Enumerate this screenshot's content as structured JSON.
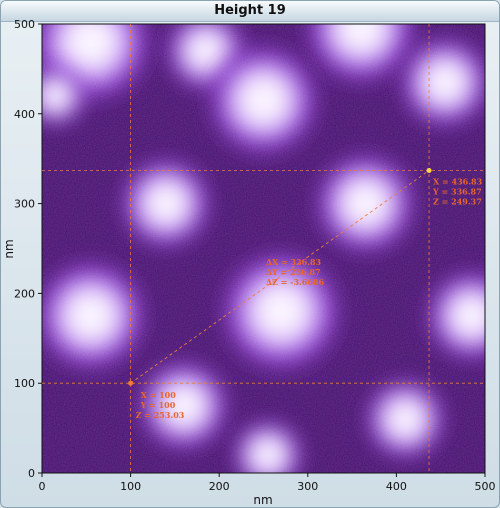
{
  "window": {
    "title": "Height 19"
  },
  "axes": {
    "xlabel": "nm",
    "ylabel": "nm",
    "xlim": [
      0,
      500
    ],
    "ylim": [
      0,
      500
    ],
    "x_ticks": [
      "0",
      "100",
      "200",
      "300",
      "400",
      "500"
    ],
    "y_ticks": [
      "0",
      "100",
      "200",
      "300",
      "400",
      "500"
    ]
  },
  "colors": {
    "marker": "#f07a3a",
    "colormap_low": "#1e002a",
    "colormap_mid": "#8a2bd8",
    "colormap_high": "#ffffff"
  },
  "cursor1": {
    "x": 100,
    "y": 100,
    "label_x": "X = 100",
    "label_y": "Y = 100",
    "label_z": "Z = 253.03"
  },
  "cursor2": {
    "x": 436.83,
    "y": 336.87,
    "label_x": "X = 436.83",
    "label_y": "Y = 336.87",
    "label_z": "Z = 249.37"
  },
  "delta": {
    "label_dx": "ΔX = 336.83",
    "label_dy": "ΔY = 236.87",
    "label_dz": "ΔZ = -3.6686"
  },
  "blobs": [
    {
      "x": 55,
      "y": 480,
      "r": 60
    },
    {
      "x": 185,
      "y": 470,
      "r": 40
    },
    {
      "x": 360,
      "y": 495,
      "r": 55
    },
    {
      "x": 250,
      "y": 415,
      "r": 55
    },
    {
      "x": 15,
      "y": 420,
      "r": 30
    },
    {
      "x": 455,
      "y": 435,
      "r": 45
    },
    {
      "x": 140,
      "y": 300,
      "r": 45
    },
    {
      "x": 365,
      "y": 300,
      "r": 50
    },
    {
      "x": 55,
      "y": 175,
      "r": 55
    },
    {
      "x": 270,
      "y": 180,
      "r": 60
    },
    {
      "x": 485,
      "y": 175,
      "r": 45
    },
    {
      "x": 160,
      "y": 75,
      "r": 45
    },
    {
      "x": 410,
      "y": 60,
      "r": 40
    },
    {
      "x": 255,
      "y": 20,
      "r": 35
    }
  ]
}
